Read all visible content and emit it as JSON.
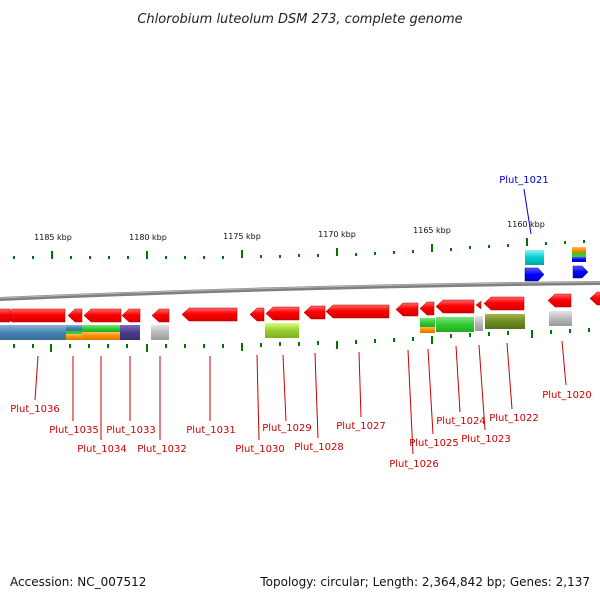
{
  "header": {
    "title": "Chlorobium luteolum DSM 273, complete genome"
  },
  "footer": {
    "accession": "Accession: NC_007512",
    "summary": "Topology: circular; Length: 2,364,842 bp; Genes: 2,137"
  },
  "colors": {
    "backbone": "#808080",
    "gene_arrow": "#ff0000",
    "highlight_arrow": "#0000ff",
    "label_red": "#cc0000",
    "label_blue": "#0000cc",
    "tick": "#007700"
  },
  "scale": {
    "labels": [
      "1185 kbp",
      "1180 kbp",
      "1175 kbp",
      "1170 kbp",
      "1165 kbp",
      "1160 kbp"
    ]
  },
  "genes": [
    {
      "label": "Plut_1036"
    },
    {
      "label": "Plut_1035"
    },
    {
      "label": "Plut_1034"
    },
    {
      "label": "Plut_1033"
    },
    {
      "label": "Plut_1032"
    },
    {
      "label": "Plut_1031"
    },
    {
      "label": "Plut_1030"
    },
    {
      "label": "Plut_1029"
    },
    {
      "label": "Plut_1028"
    },
    {
      "label": "Plut_1027"
    },
    {
      "label": "Plut_1026"
    },
    {
      "label": "Plut_1025"
    },
    {
      "label": "Plut_1024"
    },
    {
      "label": "Plut_1023"
    },
    {
      "label": "Plut_1022"
    },
    {
      "label": "Plut_1021",
      "highlight": true
    },
    {
      "label": "Plut_1020"
    }
  ]
}
